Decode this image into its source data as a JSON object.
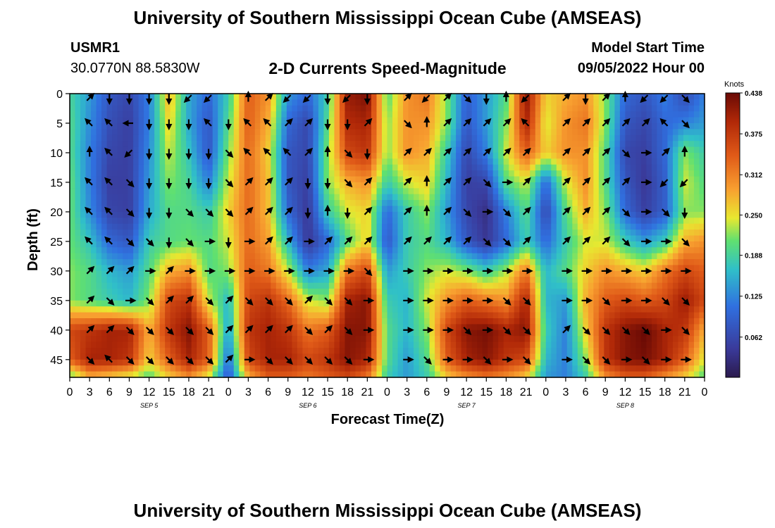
{
  "page": {
    "title_top": "University of Southern Mississippi Ocean Cube (AMSEAS)",
    "title_bottom": "University of Southern Mississippi Ocean Cube (AMSEAS)",
    "station": "USMR1",
    "coordinates": "30.0770N  88.5830W",
    "subtitle": "2-D Currents Speed-Magnitude",
    "model_start_label": "Model Start Time",
    "model_start_value": "09/05/2022 Hour 00"
  },
  "chart_data": {
    "type": "heatmap",
    "title": "2-D Currents Speed-Magnitude",
    "xlabel": "Forecast Time(Z)",
    "ylabel": "Depth (ft)",
    "x_ticks": [
      "0",
      "3",
      "6",
      "9",
      "12",
      "15",
      "18",
      "21",
      "0",
      "3",
      "6",
      "9",
      "12",
      "15",
      "18",
      "21",
      "0",
      "3",
      "6",
      "9",
      "12",
      "15",
      "18",
      "21",
      "0",
      "3",
      "6",
      "9",
      "12",
      "15",
      "18",
      "21",
      "0"
    ],
    "x_hours": [
      0,
      96
    ],
    "day_labels": [
      {
        "label": "SEP 5",
        "hour": 12
      },
      {
        "label": "SEP 6",
        "hour": 36
      },
      {
        "label": "SEP 7",
        "hour": 60
      },
      {
        "label": "SEP 8",
        "hour": 84
      }
    ],
    "y_ticks": [
      "0",
      "5",
      "10",
      "15",
      "20",
      "25",
      "30",
      "35",
      "40",
      "45"
    ],
    "ylim": [
      0,
      48
    ],
    "colorbar": {
      "title": "Knots",
      "ticks": [
        "0.062",
        "0.125",
        "0.188",
        "0.250",
        "0.312",
        "0.375",
        "0.438"
      ],
      "range": [
        0,
        0.438
      ]
    },
    "hours": [
      0,
      3,
      6,
      9,
      12,
      15,
      18,
      21,
      24,
      27,
      30,
      33,
      36,
      39,
      42,
      45,
      48,
      51,
      54,
      57,
      60,
      63,
      66,
      69,
      72,
      75,
      78,
      81,
      84,
      87,
      90,
      93,
      96
    ],
    "depths": [
      0,
      5,
      10,
      15,
      20,
      25,
      30,
      35,
      40,
      45,
      48
    ],
    "speed": [
      [
        0.19,
        0.14,
        0.08,
        0.06,
        0.12,
        0.28,
        0.15,
        0.1,
        0.18,
        0.34,
        0.3,
        0.14,
        0.1,
        0.18,
        0.41,
        0.43,
        0.2,
        0.3,
        0.32,
        0.22,
        0.09,
        0.14,
        0.2,
        0.42,
        0.26,
        0.28,
        0.3,
        0.22,
        0.1,
        0.08,
        0.12,
        0.06,
        0.12
      ],
      [
        0.2,
        0.13,
        0.07,
        0.05,
        0.12,
        0.26,
        0.15,
        0.08,
        0.2,
        0.34,
        0.28,
        0.1,
        0.06,
        0.2,
        0.39,
        0.4,
        0.22,
        0.3,
        0.3,
        0.22,
        0.08,
        0.14,
        0.22,
        0.4,
        0.24,
        0.3,
        0.32,
        0.22,
        0.08,
        0.06,
        0.1,
        0.12,
        0.14
      ],
      [
        0.2,
        0.12,
        0.06,
        0.05,
        0.13,
        0.24,
        0.17,
        0.08,
        0.22,
        0.33,
        0.26,
        0.08,
        0.06,
        0.22,
        0.36,
        0.38,
        0.22,
        0.3,
        0.28,
        0.18,
        0.06,
        0.12,
        0.24,
        0.34,
        0.26,
        0.3,
        0.3,
        0.2,
        0.06,
        0.05,
        0.1,
        0.22,
        0.18
      ],
      [
        0.21,
        0.12,
        0.05,
        0.05,
        0.14,
        0.22,
        0.19,
        0.12,
        0.24,
        0.33,
        0.27,
        0.08,
        0.05,
        0.22,
        0.28,
        0.3,
        0.18,
        0.24,
        0.26,
        0.16,
        0.05,
        0.06,
        0.2,
        0.24,
        0.1,
        0.24,
        0.3,
        0.2,
        0.08,
        0.04,
        0.09,
        0.24,
        0.2
      ],
      [
        0.21,
        0.13,
        0.06,
        0.05,
        0.15,
        0.2,
        0.2,
        0.18,
        0.26,
        0.33,
        0.27,
        0.1,
        0.04,
        0.18,
        0.24,
        0.26,
        0.1,
        0.18,
        0.22,
        0.14,
        0.06,
        0.03,
        0.12,
        0.2,
        0.06,
        0.2,
        0.28,
        0.22,
        0.1,
        0.05,
        0.09,
        0.22,
        0.22
      ],
      [
        0.21,
        0.17,
        0.1,
        0.08,
        0.18,
        0.2,
        0.21,
        0.2,
        0.24,
        0.33,
        0.29,
        0.16,
        0.04,
        0.1,
        0.2,
        0.26,
        0.08,
        0.18,
        0.2,
        0.16,
        0.08,
        0.04,
        0.1,
        0.18,
        0.1,
        0.18,
        0.24,
        0.24,
        0.18,
        0.14,
        0.18,
        0.28,
        0.3
      ],
      [
        0.22,
        0.2,
        0.16,
        0.14,
        0.2,
        0.28,
        0.3,
        0.2,
        0.22,
        0.34,
        0.32,
        0.24,
        0.12,
        0.15,
        0.32,
        0.36,
        0.14,
        0.18,
        0.22,
        0.24,
        0.22,
        0.18,
        0.23,
        0.32,
        0.16,
        0.2,
        0.26,
        0.3,
        0.28,
        0.26,
        0.32,
        0.36,
        0.34
      ],
      [
        0.22,
        0.2,
        0.18,
        0.16,
        0.22,
        0.36,
        0.38,
        0.24,
        0.16,
        0.36,
        0.38,
        0.33,
        0.24,
        0.22,
        0.4,
        0.42,
        0.18,
        0.16,
        0.24,
        0.3,
        0.34,
        0.32,
        0.3,
        0.4,
        0.16,
        0.14,
        0.28,
        0.34,
        0.36,
        0.34,
        0.36,
        0.41,
        0.36
      ],
      [
        0.36,
        0.38,
        0.4,
        0.4,
        0.28,
        0.38,
        0.42,
        0.34,
        0.14,
        0.38,
        0.4,
        0.38,
        0.32,
        0.34,
        0.42,
        0.42,
        0.2,
        0.16,
        0.22,
        0.36,
        0.42,
        0.43,
        0.4,
        0.42,
        0.18,
        0.12,
        0.26,
        0.38,
        0.42,
        0.44,
        0.4,
        0.38,
        0.28
      ],
      [
        0.34,
        0.4,
        0.4,
        0.38,
        0.26,
        0.34,
        0.4,
        0.34,
        0.1,
        0.36,
        0.4,
        0.4,
        0.36,
        0.38,
        0.42,
        0.4,
        0.2,
        0.14,
        0.2,
        0.34,
        0.4,
        0.42,
        0.38,
        0.36,
        0.16,
        0.12,
        0.22,
        0.38,
        0.42,
        0.43,
        0.4,
        0.34,
        0.24
      ],
      [
        0.2,
        0.28,
        0.26,
        0.24,
        0.2,
        0.26,
        0.3,
        0.24,
        0.08,
        0.28,
        0.34,
        0.34,
        0.32,
        0.34,
        0.36,
        0.32,
        0.18,
        0.14,
        0.18,
        0.26,
        0.3,
        0.32,
        0.3,
        0.26,
        0.14,
        0.12,
        0.18,
        0.3,
        0.34,
        0.34,
        0.3,
        0.26,
        0.2
      ]
    ],
    "arrows": [
      [
        null,
        "NE",
        "S",
        "S",
        "S",
        "S",
        "SW",
        "SW",
        null,
        "N",
        "NE",
        "SW",
        "SW",
        "S",
        "SW",
        "S",
        null,
        "NE",
        "SW",
        "NE",
        "SE",
        "S",
        "N",
        "SW",
        null,
        "NE",
        "S",
        "NE",
        "N",
        "SW",
        "SW",
        "SE",
        null
      ],
      [
        null,
        "NW",
        "NW",
        "W",
        "S",
        "S",
        "S",
        "NW",
        "S",
        "NW",
        "NW",
        "NE",
        "NE",
        "S",
        "S",
        "NE",
        null,
        "SE",
        "N",
        "NE",
        "NE",
        "NE",
        "NE",
        "NW",
        null,
        "NE",
        "NE",
        "NE",
        "NE",
        "NE",
        "NW",
        "SE",
        null
      ],
      [
        null,
        "N",
        "NW",
        "SW",
        "S",
        "S",
        "S",
        "S",
        "SE",
        "NW",
        "NW",
        "NW",
        "NE",
        "N",
        "SE",
        "S",
        null,
        "NE",
        "NE",
        "NE",
        "NE",
        "NE",
        "NE",
        "NE",
        null,
        "NE",
        "NE",
        "NE",
        "SE",
        "E",
        "NE",
        "N",
        null
      ],
      [
        null,
        "NW",
        "NW",
        "SE",
        "S",
        "S",
        "S",
        "S",
        "SE",
        "NE",
        "NE",
        "NE",
        "S",
        "S",
        "SE",
        "NE",
        null,
        "NE",
        "N",
        "NE",
        "NE",
        "SE",
        "E",
        "NE",
        null,
        "NE",
        "NE",
        "NE",
        "NE",
        "E",
        "SW",
        "SW",
        null
      ],
      [
        null,
        "NW",
        "NW",
        "SE",
        "S",
        "S",
        "SE",
        "SE",
        "SE",
        "NE",
        "NE",
        "NE",
        "S",
        "N",
        "S",
        "NE",
        null,
        "NE",
        "N",
        "NE",
        "SE",
        "E",
        "SE",
        "NE",
        null,
        "NE",
        "NE",
        "NE",
        "SE",
        "E",
        "SE",
        "S",
        null
      ],
      [
        null,
        "NW",
        "NW",
        "SE",
        "SE",
        "S",
        "SE",
        "E",
        "S",
        "E",
        "NE",
        "NE",
        "E",
        "NE",
        "NE",
        "NE",
        null,
        "NE",
        "NE",
        "NE",
        "NE",
        "SE",
        "SE",
        "NE",
        null,
        "NE",
        "NE",
        "NE",
        "SE",
        "E",
        "E",
        "SE",
        null
      ],
      [
        null,
        "NE",
        "NE",
        "NE",
        "E",
        "NE",
        "E",
        "E",
        "E",
        "E",
        "E",
        "E",
        "E",
        "E",
        "E",
        "SE",
        null,
        "E",
        "E",
        "E",
        "E",
        "E",
        "E",
        "E",
        null,
        "E",
        "E",
        "E",
        "E",
        "E",
        "E",
        "E",
        null
      ],
      [
        null,
        "NE",
        "SE",
        "E",
        "SE",
        "NE",
        "NE",
        "SE",
        "NE",
        "SE",
        "SE",
        "SE",
        "NE",
        "SE",
        "SE",
        "E",
        null,
        "E",
        "E",
        "E",
        "E",
        "E",
        "SE",
        "SE",
        null,
        "E",
        "E",
        "SE",
        "E",
        "E",
        "SE",
        "SE",
        null
      ],
      [
        null,
        "NE",
        "NE",
        "SE",
        "SE",
        "SE",
        "SE",
        "SE",
        "NE",
        "NE",
        "NE",
        "NE",
        "SE",
        "NE",
        "SE",
        "E",
        null,
        "E",
        "E",
        "E",
        "SE",
        "E",
        "SE",
        "SE",
        null,
        "NE",
        "SE",
        "SE",
        "SE",
        "SE",
        "E",
        "SE",
        null
      ],
      [
        null,
        "SE",
        "NW",
        "SE",
        "SE",
        "SE",
        "SE",
        "SE",
        "NE",
        "E",
        "SE",
        "SE",
        "SE",
        "SE",
        "SE",
        "E",
        null,
        "E",
        "SE",
        "E",
        "E",
        "SE",
        "E",
        "SE",
        null,
        "E",
        "SE",
        "SE",
        "E",
        "SE",
        "E",
        "E",
        null
      ]
    ]
  }
}
